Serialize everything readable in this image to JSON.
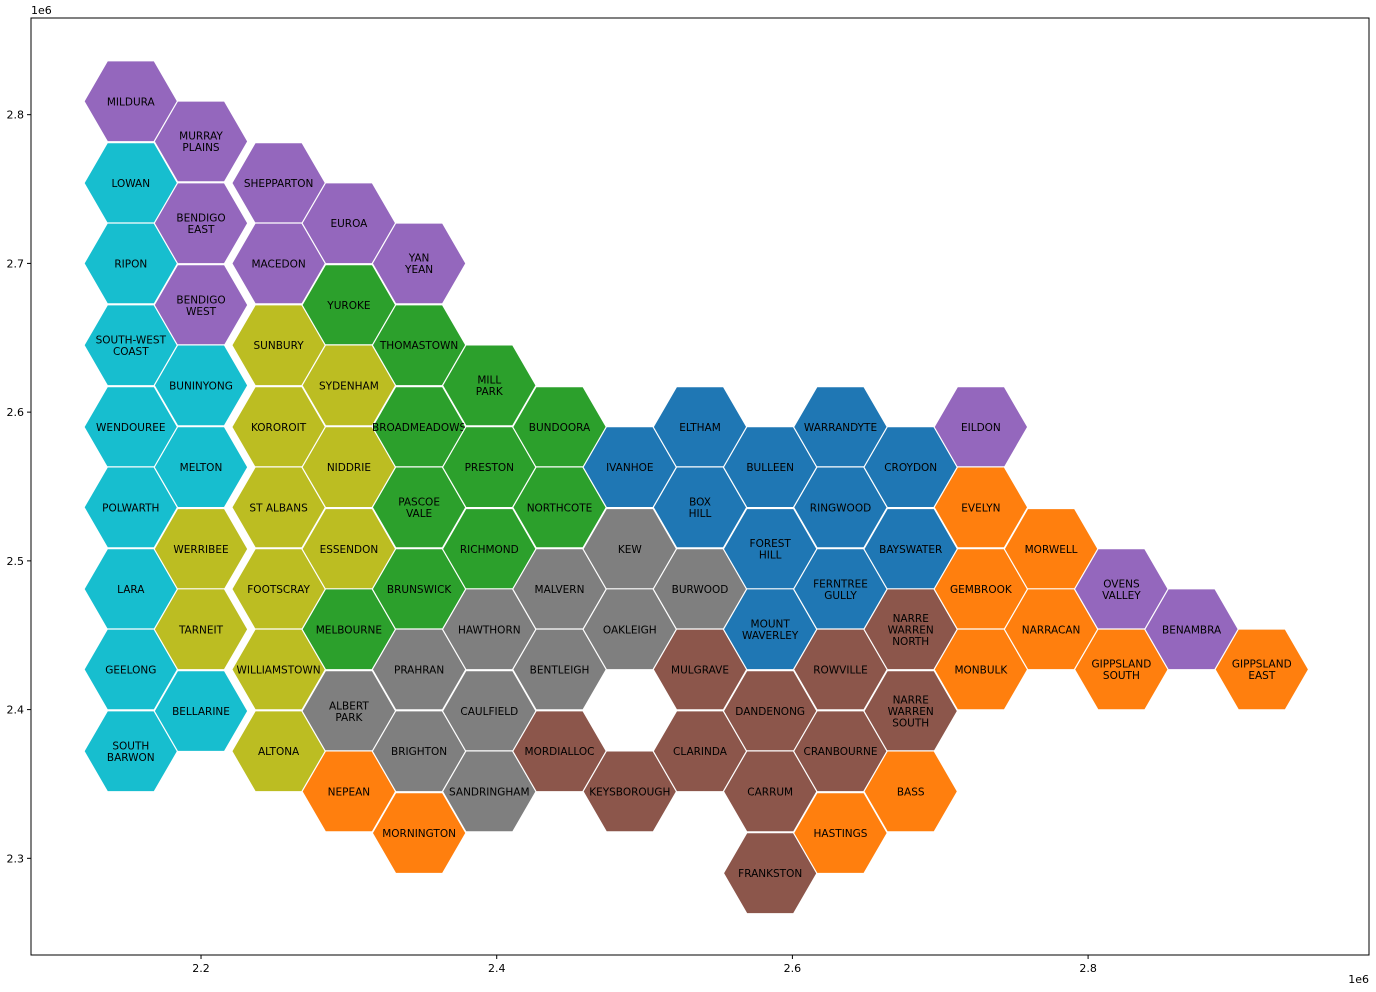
{
  "map": {
    "axes": {
      "x_offset_label": "1e6",
      "y_offset_label": "1e6",
      "xlim": [
        2.085,
        2.99
      ],
      "ylim": [
        2.235,
        2.865
      ],
      "x_ticks": [
        2.2,
        2.4,
        2.6,
        2.8
      ],
      "y_ticks": [
        2.3,
        2.4,
        2.5,
        2.6,
        2.7,
        2.8
      ]
    },
    "regions": [
      {
        "name": "purple",
        "color": "#9467bd"
      },
      {
        "name": "cyan",
        "color": "#17becf"
      },
      {
        "name": "olive",
        "color": "#bcbd22"
      },
      {
        "name": "green",
        "color": "#2ca02c"
      },
      {
        "name": "blue",
        "color": "#1f77b4"
      },
      {
        "name": "gray",
        "color": "#7f7f7f"
      },
      {
        "name": "brown",
        "color": "#8c564b"
      },
      {
        "name": "orange",
        "color": "#ff7f0e"
      }
    ],
    "districts": [
      {
        "label": "MILDURA",
        "x": 2.1525,
        "y": 2.809,
        "region": "purple"
      },
      {
        "label": "LOWAN",
        "x": 2.1525,
        "y": 2.754,
        "region": "cyan"
      },
      {
        "label": "RIPON",
        "x": 2.1525,
        "y": 2.7,
        "region": "cyan"
      },
      {
        "label": "SOUTH-WEST\nCOAST",
        "x": 2.1525,
        "y": 2.645,
        "region": "cyan"
      },
      {
        "label": "WENDOUREE",
        "x": 2.1525,
        "y": 2.59,
        "region": "cyan"
      },
      {
        "label": "POLWARTH",
        "x": 2.1525,
        "y": 2.536,
        "region": "cyan"
      },
      {
        "label": "LARA",
        "x": 2.1525,
        "y": 2.481,
        "region": "cyan"
      },
      {
        "label": "GEELONG",
        "x": 2.1525,
        "y": 2.427,
        "region": "cyan"
      },
      {
        "label": "SOUTH\nBARWON",
        "x": 2.1525,
        "y": 2.372,
        "region": "cyan"
      },
      {
        "label": "MURRAY\nPLAINS",
        "x": 2.2,
        "y": 2.782,
        "region": "purple"
      },
      {
        "label": "BENDIGO\nEAST",
        "x": 2.2,
        "y": 2.727,
        "region": "purple"
      },
      {
        "label": "BENDIGO\nWEST",
        "x": 2.2,
        "y": 2.672,
        "region": "purple"
      },
      {
        "label": "BUNINYONG",
        "x": 2.2,
        "y": 2.618,
        "region": "cyan"
      },
      {
        "label": "MELTON",
        "x": 2.2,
        "y": 2.563,
        "region": "cyan"
      },
      {
        "label": "WERRIBEE",
        "x": 2.2,
        "y": 2.508,
        "region": "olive"
      },
      {
        "label": "TARNEIT",
        "x": 2.2,
        "y": 2.454,
        "region": "olive"
      },
      {
        "label": "BELLARINE",
        "x": 2.2,
        "y": 2.399,
        "region": "cyan"
      },
      {
        "label": "SHEPPARTON",
        "x": 2.2525,
        "y": 2.754,
        "region": "purple"
      },
      {
        "label": "MACEDON",
        "x": 2.2525,
        "y": 2.7,
        "region": "purple"
      },
      {
        "label": "SUNBURY",
        "x": 2.2525,
        "y": 2.645,
        "region": "olive"
      },
      {
        "label": "KOROROIT",
        "x": 2.2525,
        "y": 2.59,
        "region": "olive"
      },
      {
        "label": "ST ALBANS",
        "x": 2.2525,
        "y": 2.536,
        "region": "olive"
      },
      {
        "label": "FOOTSCRAY",
        "x": 2.2525,
        "y": 2.481,
        "region": "olive"
      },
      {
        "label": "WILLIAMSTOWN",
        "x": 2.2525,
        "y": 2.427,
        "region": "olive"
      },
      {
        "label": "ALTONA",
        "x": 2.2525,
        "y": 2.372,
        "region": "olive"
      },
      {
        "label": "EUROA",
        "x": 2.3,
        "y": 2.727,
        "region": "purple"
      },
      {
        "label": "YUROKE",
        "x": 2.3,
        "y": 2.672,
        "region": "green"
      },
      {
        "label": "SYDENHAM",
        "x": 2.3,
        "y": 2.618,
        "region": "olive"
      },
      {
        "label": "NIDDRIE",
        "x": 2.3,
        "y": 2.563,
        "region": "olive"
      },
      {
        "label": "ESSENDON",
        "x": 2.3,
        "y": 2.508,
        "region": "olive"
      },
      {
        "label": "MELBOURNE",
        "x": 2.3,
        "y": 2.454,
        "region": "green"
      },
      {
        "label": "ALBERT\nPARK",
        "x": 2.3,
        "y": 2.399,
        "region": "gray"
      },
      {
        "label": "NEPEAN",
        "x": 2.3,
        "y": 2.345,
        "region": "orange"
      },
      {
        "label": "YAN\nYEAN",
        "x": 2.3475,
        "y": 2.7,
        "region": "purple"
      },
      {
        "label": "THOMASTOWN",
        "x": 2.3475,
        "y": 2.645,
        "region": "green"
      },
      {
        "label": "BROADMEADOWS",
        "x": 2.3475,
        "y": 2.59,
        "region": "green"
      },
      {
        "label": "PASCOE\nVALE",
        "x": 2.3475,
        "y": 2.536,
        "region": "green"
      },
      {
        "label": "BRUNSWICK",
        "x": 2.3475,
        "y": 2.481,
        "region": "green"
      },
      {
        "label": "PRAHRAN",
        "x": 2.3475,
        "y": 2.427,
        "region": "gray"
      },
      {
        "label": "BRIGHTON",
        "x": 2.3475,
        "y": 2.372,
        "region": "gray"
      },
      {
        "label": "MORNINGTON",
        "x": 2.3475,
        "y": 2.317,
        "region": "orange"
      },
      {
        "label": "MILL\nPARK",
        "x": 2.395,
        "y": 2.618,
        "region": "green"
      },
      {
        "label": "PRESTON",
        "x": 2.395,
        "y": 2.563,
        "region": "green"
      },
      {
        "label": "RICHMOND",
        "x": 2.395,
        "y": 2.508,
        "region": "green"
      },
      {
        "label": "HAWTHORN",
        "x": 2.395,
        "y": 2.454,
        "region": "gray"
      },
      {
        "label": "CAULFIELD",
        "x": 2.395,
        "y": 2.399,
        "region": "gray"
      },
      {
        "label": "SANDRINGHAM",
        "x": 2.395,
        "y": 2.345,
        "region": "gray"
      },
      {
        "label": "BUNDOORA",
        "x": 2.4425,
        "y": 2.59,
        "region": "green"
      },
      {
        "label": "NORTHCOTE",
        "x": 2.4425,
        "y": 2.536,
        "region": "green"
      },
      {
        "label": "MALVERN",
        "x": 2.4425,
        "y": 2.481,
        "region": "gray"
      },
      {
        "label": "BENTLEIGH",
        "x": 2.4425,
        "y": 2.427,
        "region": "gray"
      },
      {
        "label": "MORDIALLOC",
        "x": 2.4425,
        "y": 2.372,
        "region": "brown"
      },
      {
        "label": "IVANHOE",
        "x": 2.49,
        "y": 2.563,
        "region": "blue"
      },
      {
        "label": "KEW",
        "x": 2.49,
        "y": 2.508,
        "region": "gray"
      },
      {
        "label": "OAKLEIGH",
        "x": 2.49,
        "y": 2.454,
        "region": "gray"
      },
      {
        "label": "KEYSBOROUGH",
        "x": 2.49,
        "y": 2.345,
        "region": "brown"
      },
      {
        "label": "ELTHAM",
        "x": 2.5375,
        "y": 2.59,
        "region": "blue"
      },
      {
        "label": "BOX\nHILL",
        "x": 2.5375,
        "y": 2.536,
        "region": "blue"
      },
      {
        "label": "BURWOOD",
        "x": 2.5375,
        "y": 2.481,
        "region": "gray"
      },
      {
        "label": "MULGRAVE",
        "x": 2.5375,
        "y": 2.427,
        "region": "brown"
      },
      {
        "label": "CLARINDA",
        "x": 2.5375,
        "y": 2.372,
        "region": "brown"
      },
      {
        "label": "BULLEEN",
        "x": 2.585,
        "y": 2.563,
        "region": "blue"
      },
      {
        "label": "FOREST\nHILL",
        "x": 2.585,
        "y": 2.508,
        "region": "blue"
      },
      {
        "label": "MOUNT\nWAVERLEY",
        "x": 2.585,
        "y": 2.454,
        "region": "blue"
      },
      {
        "label": "DANDENONG",
        "x": 2.585,
        "y": 2.399,
        "region": "brown"
      },
      {
        "label": "CARRUM",
        "x": 2.585,
        "y": 2.345,
        "region": "brown"
      },
      {
        "label": "FRANKSTON",
        "x": 2.585,
        "y": 2.29,
        "region": "brown"
      },
      {
        "label": "WARRANDYTE",
        "x": 2.6325,
        "y": 2.59,
        "region": "blue"
      },
      {
        "label": "RINGWOOD",
        "x": 2.6325,
        "y": 2.536,
        "region": "blue"
      },
      {
        "label": "FERNTREE\nGULLY",
        "x": 2.6325,
        "y": 2.481,
        "region": "blue"
      },
      {
        "label": "ROWVILLE",
        "x": 2.6325,
        "y": 2.427,
        "region": "brown"
      },
      {
        "label": "CRANBOURNE",
        "x": 2.6325,
        "y": 2.372,
        "region": "brown"
      },
      {
        "label": "HASTINGS",
        "x": 2.6325,
        "y": 2.317,
        "region": "orange"
      },
      {
        "label": "CROYDON",
        "x": 2.68,
        "y": 2.563,
        "region": "blue"
      },
      {
        "label": "BAYSWATER",
        "x": 2.68,
        "y": 2.508,
        "region": "blue"
      },
      {
        "label": "NARRE\nWARREN\nNORTH",
        "x": 2.68,
        "y": 2.454,
        "region": "brown"
      },
      {
        "label": "NARRE\nWARREN\nSOUTH",
        "x": 2.68,
        "y": 2.399,
        "region": "brown"
      },
      {
        "label": "BASS",
        "x": 2.68,
        "y": 2.345,
        "region": "orange"
      },
      {
        "label": "EILDON",
        "x": 2.7275,
        "y": 2.59,
        "region": "purple"
      },
      {
        "label": "EVELYN",
        "x": 2.7275,
        "y": 2.536,
        "region": "orange"
      },
      {
        "label": "GEMBROOK",
        "x": 2.7275,
        "y": 2.481,
        "region": "orange"
      },
      {
        "label": "MONBULK",
        "x": 2.7275,
        "y": 2.427,
        "region": "orange"
      },
      {
        "label": "MORWELL",
        "x": 2.775,
        "y": 2.508,
        "region": "orange"
      },
      {
        "label": "NARRACAN",
        "x": 2.775,
        "y": 2.454,
        "region": "orange"
      },
      {
        "label": "OVENS\nVALLEY",
        "x": 2.8225,
        "y": 2.481,
        "region": "purple"
      },
      {
        "label": "GIPPSLAND\nSOUTH",
        "x": 2.8225,
        "y": 2.427,
        "region": "orange"
      },
      {
        "label": "BENAMBRA",
        "x": 2.87,
        "y": 2.454,
        "region": "purple"
      },
      {
        "label": "GIPPSLAND\nEAST",
        "x": 2.9175,
        "y": 2.427,
        "region": "orange"
      }
    ]
  }
}
